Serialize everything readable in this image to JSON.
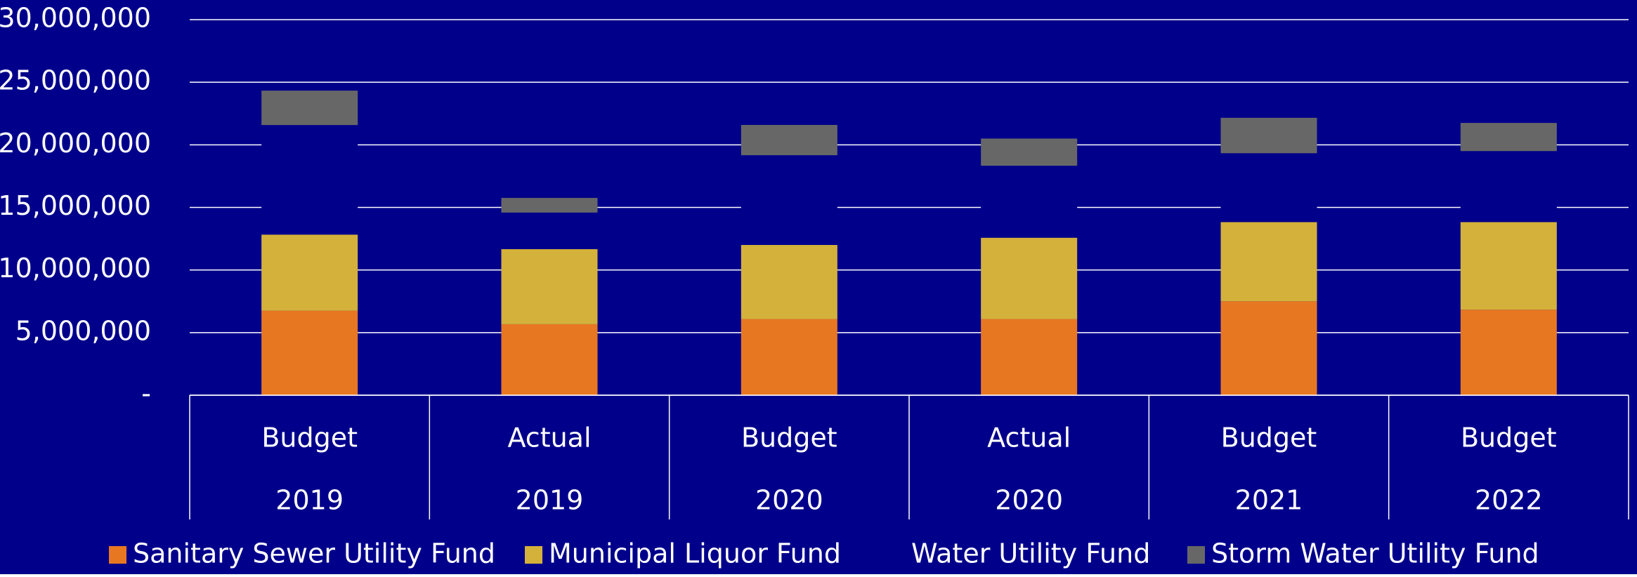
{
  "chart_data": {
    "type": "stacked_bar",
    "categories": [
      [
        "Budget",
        "2019"
      ],
      [
        "Actual",
        "2019"
      ],
      [
        "Budget",
        "2020"
      ],
      [
        "Actual",
        "2020"
      ],
      [
        "Budget",
        "2021"
      ],
      [
        "Budget",
        "2022"
      ]
    ],
    "series": [
      {
        "name": "Sanitary Sewer Utility Fund",
        "color": "#e87722",
        "values": [
          6750000,
          5670000,
          6080000,
          6080000,
          7500000,
          6830000
        ]
      },
      {
        "name": "Municipal Liquor Fund",
        "color": "#d4b13a",
        "values": [
          6080000,
          6000000,
          5920000,
          6500000,
          6330000,
          7000000
        ]
      },
      {
        "name": "Water Utility Fund",
        "color": "#00008b",
        "values": [
          8750000,
          2920000,
          7170000,
          5750000,
          5500000,
          5670000
        ]
      },
      {
        "name": "Storm Water Utility Fund",
        "color": "#676767",
        "values": [
          2750000,
          1170000,
          2420000,
          2170000,
          2830000,
          2250000
        ]
      }
    ],
    "ylim": [
      0,
      30000000
    ],
    "yticks": [
      {
        "value": 0,
        "label": "-"
      },
      {
        "value": 5000000,
        "label": "5,000,000"
      },
      {
        "value": 10000000,
        "label": "10,000,000"
      },
      {
        "value": 15000000,
        "label": "15,000,000"
      },
      {
        "value": 20000000,
        "label": "20,000,000"
      },
      {
        "value": 25000000,
        "label": "25,000,000"
      },
      {
        "value": 30000000,
        "label": "30,000,000"
      }
    ],
    "grid": true,
    "background": "#00008b",
    "legend": "bottom"
  }
}
